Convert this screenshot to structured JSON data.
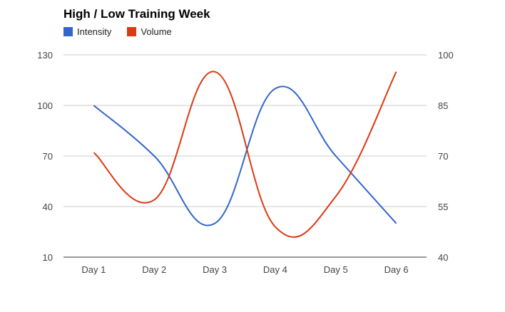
{
  "chart_data": {
    "type": "line",
    "title": "High / Low Training Week",
    "categories": [
      "Day 1",
      "Day 2",
      "Day 3",
      "Day 4",
      "Day 5",
      "Day 6"
    ],
    "series": [
      {
        "name": "Intensity",
        "axis": "left",
        "color": "#3366cc",
        "values": [
          100,
          70,
          30,
          110,
          70,
          30
        ]
      },
      {
        "name": "Volume",
        "axis": "right",
        "color": "#dc3912",
        "values": [
          71,
          57,
          95,
          49,
          58,
          95
        ]
      }
    ],
    "left_axis": {
      "ylim": [
        10,
        130
      ],
      "ticks": [
        10,
        40,
        70,
        100,
        130
      ]
    },
    "right_axis": {
      "ylim": [
        40,
        100
      ],
      "ticks": [
        40,
        55,
        70,
        85,
        100
      ]
    },
    "xlabel": "",
    "ylabel": "",
    "grid": true,
    "legend_position": "top-left",
    "curve": "smooth"
  }
}
